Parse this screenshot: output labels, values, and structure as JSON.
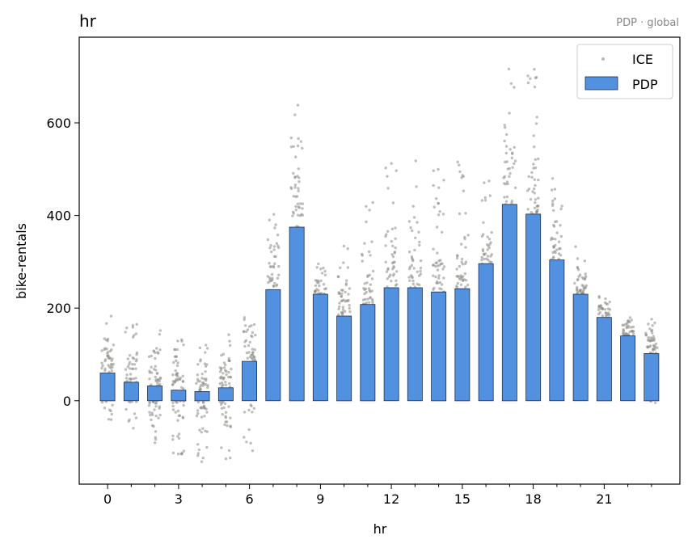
{
  "chart_data": {
    "type": "bar",
    "title": "hr",
    "corner_note": "PDP · global",
    "xlabel": "hr",
    "ylabel": "bike-rentals",
    "x": [
      0,
      1,
      2,
      3,
      4,
      5,
      6,
      7,
      8,
      9,
      10,
      11,
      12,
      13,
      14,
      15,
      16,
      17,
      18,
      19,
      20,
      21,
      22,
      23
    ],
    "xticks": [
      0,
      3,
      6,
      9,
      12,
      15,
      18,
      21
    ],
    "yticks": [
      0,
      200,
      400,
      600
    ],
    "xlim": [
      -1.2,
      24.2
    ],
    "ylim": [
      -180,
      785
    ],
    "grid": false,
    "legend_position": "top-right",
    "series": [
      {
        "name": "PDP",
        "kind": "bar",
        "values": [
          60,
          40,
          32,
          23,
          20,
          28,
          85,
          240,
          375,
          230,
          183,
          208,
          244,
          244,
          235,
          242,
          296,
          424,
          403,
          304,
          230,
          180,
          140,
          102
        ]
      },
      {
        "name": "ICE",
        "kind": "scatter",
        "ranges": [
          [
            -70,
            185
          ],
          [
            -95,
            168
          ],
          [
            -105,
            160
          ],
          [
            -125,
            158
          ],
          [
            -135,
            150
          ],
          [
            -130,
            150
          ],
          [
            -125,
            180
          ],
          [
            -15,
            415
          ],
          [
            75,
            680
          ],
          [
            160,
            300
          ],
          [
            85,
            335
          ],
          [
            130,
            435
          ],
          [
            175,
            525
          ],
          [
            165,
            530
          ],
          [
            160,
            525
          ],
          [
            165,
            530
          ],
          [
            195,
            475
          ],
          [
            220,
            745
          ],
          [
            200,
            730
          ],
          [
            150,
            495
          ],
          [
            140,
            335
          ],
          [
            110,
            235
          ],
          [
            80,
            185
          ],
          [
            -5,
            178
          ]
        ]
      }
    ],
    "colors": {
      "bar_fill": "#5290e0",
      "bar_edge": "#1f2f4f",
      "points": "#8a8a85"
    }
  }
}
